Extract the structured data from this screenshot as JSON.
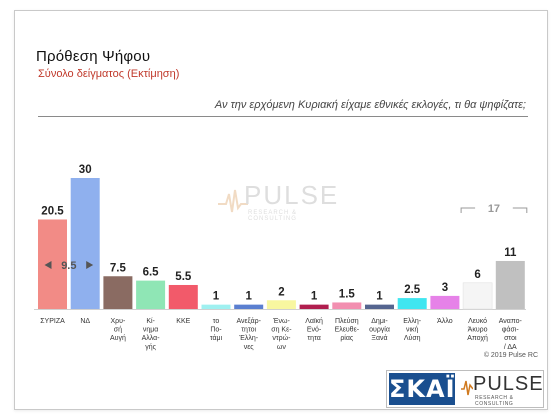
{
  "title": "Πρόθεση Ψήφου",
  "subtitle": "Σύνολο δείγματος   (Εκτίμηση)",
  "question": "Αν την ερχόμενη Κυριακή είχαμε εθνικές εκλογές, τι θα ψηφίζατε;",
  "watermark": {
    "word": "PULSE",
    "tagline": "RESEARCH & CONSULTING"
  },
  "copyright": "© 2019 Pulse RC",
  "brand": {
    "channel": "ΣΚΑΪ",
    "pulse_word": "PULSE",
    "pulse_tagline": "RESEARCH & CONSULTING"
  },
  "chart_data": {
    "type": "bar",
    "ylim": [
      0,
      32
    ],
    "grid": false,
    "categories": [
      [
        "ΣΥΡΙΖΑ"
      ],
      [
        "ΝΔ"
      ],
      [
        "Χρυ-",
        "σή",
        "Αυγή"
      ],
      [
        "Κί-",
        "νημα",
        "Αλλα-",
        "γής"
      ],
      [
        "ΚΚΕ"
      ],
      [
        "το",
        "Πο-",
        "τάμι"
      ],
      [
        "Ανεξάρ-",
        "τητοι",
        "Έλλη-",
        "νες"
      ],
      [
        "Ένω-",
        "ση Κε-",
        "ντρώ-",
        "ων"
      ],
      [
        "Λαϊκή",
        "Ενό-",
        "τητα"
      ],
      [
        "Πλεύση",
        "Ελευθε-",
        "ρίας"
      ],
      [
        "Δημι-",
        "ουργία",
        "Ξανά"
      ],
      [
        "Ελλη-",
        "νική",
        "Λύση"
      ],
      [
        "Άλλο"
      ],
      [
        "Λευκό",
        "Άκυρο",
        "Αποχή"
      ],
      [
        "Αναπο-",
        "φάσι-",
        "στοι",
        "/ ΔΑ"
      ]
    ],
    "values": [
      20.5,
      30,
      7.5,
      6.5,
      5.5,
      1,
      1,
      2,
      1,
      1.5,
      1,
      2.5,
      3,
      6,
      11
    ],
    "value_labels": [
      "20.5",
      "30",
      "7.5",
      "6.5",
      "5.5",
      "1",
      "1",
      "2",
      "1",
      "1.5",
      "1",
      "2.5",
      "3",
      "6",
      "11"
    ],
    "colors": [
      "#f28b86",
      "#8fb0ee",
      "#8a6b62",
      "#8fe6b5",
      "#f25a6a",
      "#9ff0f0",
      "#5b7fd0",
      "#f8f7a0",
      "#b01e4e",
      "#f28fb0",
      "#55658f",
      "#40e6f0",
      "#e682e8",
      "#f5f5f5",
      "#c0c0c0"
    ],
    "annotations": {
      "gap": {
        "label": "9.5",
        "between": [
          0,
          1
        ]
      },
      "bracket": {
        "label": "17",
        "over": [
          13,
          14
        ]
      }
    }
  }
}
